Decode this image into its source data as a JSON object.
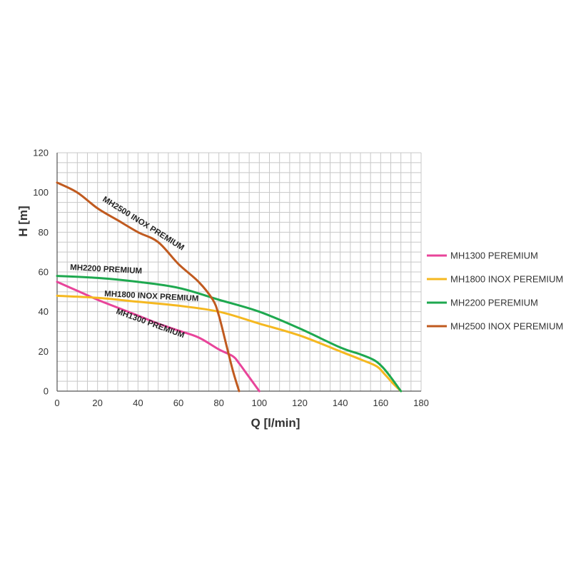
{
  "chart_data": {
    "type": "line",
    "xlabel": "Q [l/min]",
    "ylabel": "H [m]",
    "xlim": [
      0,
      180
    ],
    "ylim": [
      0,
      120
    ],
    "xticks": [
      0,
      20,
      40,
      60,
      80,
      100,
      120,
      140,
      160,
      180
    ],
    "yticks": [
      0,
      20,
      40,
      60,
      80,
      100,
      120
    ],
    "grid": true,
    "legend_position": "right",
    "series": [
      {
        "name": "MH1300 PEREMIUM",
        "curve_label": "MH1300 PREMIUM",
        "color": "#e8449a",
        "x": [
          0,
          10,
          20,
          30,
          40,
          50,
          60,
          70,
          80,
          87,
          90,
          95,
          100
        ],
        "y": [
          55,
          50.5,
          46,
          42,
          38,
          34,
          30.5,
          27,
          21,
          17.5,
          14,
          7,
          0
        ]
      },
      {
        "name": "MH1800 INOX PEREMIUM",
        "curve_label": "MH1800 INOX PREMIUM",
        "color": "#f5b820",
        "x": [
          0,
          20,
          40,
          60,
          80,
          100,
          120,
          140,
          150,
          158,
          162,
          166,
          170
        ],
        "y": [
          48,
          47,
          45,
          43,
          40,
          34,
          28,
          20,
          16,
          12.5,
          8.5,
          4,
          0
        ]
      },
      {
        "name": "MH2200 PEREMIUM",
        "curve_label": "MH2200 PREMIUM",
        "color": "#1ea84f",
        "x": [
          0,
          20,
          40,
          60,
          80,
          100,
          120,
          140,
          150,
          157,
          161,
          165,
          170
        ],
        "y": [
          58,
          57,
          55,
          52,
          46,
          40,
          31.5,
          22,
          18.5,
          15.5,
          12,
          7,
          0
        ]
      },
      {
        "name": "MH2500 INOX PEREMIUM",
        "curve_label": "MH2500 INOX PREMIUM",
        "color": "#c05a1f",
        "x": [
          0,
          10,
          20,
          30,
          40,
          50,
          60,
          70,
          77,
          80,
          84,
          87,
          90
        ],
        "y": [
          105,
          100,
          92,
          86,
          80,
          75,
          64,
          55,
          46,
          38,
          22,
          10,
          0
        ]
      }
    ]
  }
}
